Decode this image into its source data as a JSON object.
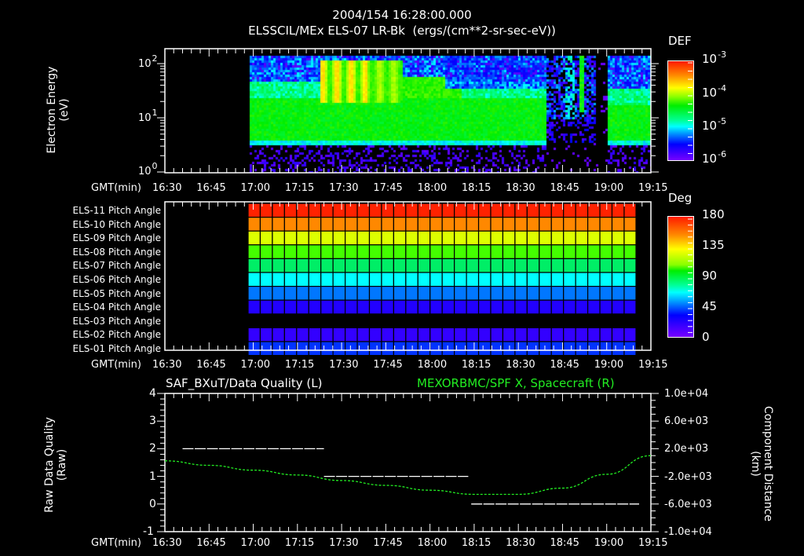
{
  "header": {
    "timestamp": "2004/154 16:28:00.000",
    "title": "ELSSCIL/MEx ELS-07 LR-Bk  (ergs/(cm**2-sr-sec-eV))"
  },
  "time_axis": {
    "label": "GMT(min)",
    "ticks": [
      "16:30",
      "16:45",
      "17:00",
      "17:15",
      "17:30",
      "17:45",
      "18:00",
      "18:15",
      "18:30",
      "18:45",
      "19:00",
      "19:15"
    ]
  },
  "panel1": {
    "ylabel_line1": "Electron Energy",
    "ylabel_line2": "(eV)",
    "yticks": [
      {
        "base": "10",
        "exp": "2"
      },
      {
        "base": "10",
        "exp": "1"
      },
      {
        "base": "10",
        "exp": "0"
      }
    ],
    "colorbar": {
      "label": "DEF",
      "ticks": [
        {
          "base": "10",
          "exp": "-3"
        },
        {
          "base": "10",
          "exp": "-4"
        },
        {
          "base": "10",
          "exp": "-5"
        },
        {
          "base": "10",
          "exp": "-6"
        }
      ]
    }
  },
  "panel2": {
    "rows": [
      "ELS-11 Pitch Angle",
      "ELS-10 Pitch Angle",
      "ELS-09 Pitch Angle",
      "ELS-08 Pitch Angle",
      "ELS-07 Pitch Angle",
      "ELS-06 Pitch Angle",
      "ELS-05 Pitch Angle",
      "ELS-04 Pitch Angle",
      "ELS-03 Pitch Angle",
      "ELS-02 Pitch Angle",
      "ELS-01 Pitch Angle"
    ],
    "row_colors": [
      "#ff2200",
      "#ff8800",
      "#ddff00",
      "#44ff00",
      "#00ee66",
      "#00ffff",
      "#0077ff",
      "#2200ff",
      null,
      "#3300ff",
      "#0033ff"
    ],
    "colorbar": {
      "label": "Deg",
      "ticks": [
        "180",
        "135",
        "90",
        "45",
        "0"
      ]
    }
  },
  "panel3": {
    "left_title": "SAF_BXuT/Data Quality (L)",
    "right_title": "MEXORBMC/SPF X, Spacecraft (R)",
    "left_ylabel_line1": "Raw Data Quality",
    "left_ylabel_line2": "(Raw)",
    "right_ylabel_line1": "Component Distance",
    "right_ylabel_line2": "(km)",
    "left_yticks": [
      "4",
      "3",
      "2",
      "1",
      "0",
      "-1"
    ],
    "right_yticks": [
      "1.0e+04",
      "6.0e+03",
      "2.0e+03",
      "-2.0e+03",
      "-6.0e+03",
      "-1.0e+04"
    ]
  },
  "colors": {
    "background": "#000000",
    "axis": "#ffffff",
    "spacecraft_line": "#22ee22"
  },
  "chart_data": [
    {
      "type": "heatmap",
      "title": "ELSSCIL/MEx ELS-07 LR-Bk (ergs/(cm**2-sr-sec-eV))",
      "xlabel": "GMT(min)",
      "ylabel": "Electron Energy (eV)",
      "yscale": "log",
      "ylim": [
        1,
        190
      ],
      "xlim": [
        "16:30",
        "19:15"
      ],
      "colorbar": {
        "label": "DEF",
        "scale": "log",
        "range": [
          1e-06,
          0.001
        ]
      },
      "data_start": "16:58",
      "data_end": "19:15",
      "segments": [
        {
          "start": "16:58",
          "end": "18:39",
          "band_low_eV": 3.5,
          "band_high_eV": 25,
          "peak_DEF": "~1e-4",
          "note": "dense green plasma band; yellow bursts near 17:23-17:35 at 40-100 eV"
        },
        {
          "start": "18:39",
          "end": "18:56",
          "band_low_eV": 5,
          "band_high_eV": 150,
          "peak_DEF": "~1e-5",
          "note": "sparse blue/violet, narrow green spike near 18:51"
        },
        {
          "start": "18:56",
          "end": "19:00",
          "peak_DEF": "<1e-6",
          "note": "gap / no signal"
        },
        {
          "start": "19:00",
          "end": "19:15",
          "band_low_eV": 3.5,
          "band_high_eV": 18,
          "peak_DEF": "~1e-4",
          "note": "green band resumes"
        }
      ]
    },
    {
      "type": "heatmap",
      "title": "Pitch Angle",
      "xlabel": "GMT(min)",
      "categories": [
        "ELS-11",
        "ELS-10",
        "ELS-09",
        "ELS-08",
        "ELS-07",
        "ELS-06",
        "ELS-05",
        "ELS-04",
        "ELS-03",
        "ELS-02",
        "ELS-01"
      ],
      "values_deg": [
        172,
        150,
        128,
        110,
        98,
        82,
        62,
        40,
        null,
        30,
        50
      ],
      "colorbar": {
        "label": "Deg",
        "range": [
          0,
          180
        ]
      },
      "data_start": "16:58",
      "data_end": "19:10"
    },
    {
      "type": "line",
      "xlabel": "GMT(min)",
      "xlim": [
        "16:30",
        "19:15"
      ],
      "series": [
        {
          "name": "SAF_BXuT/Data Quality (L)",
          "axis": "left",
          "ylim": [
            -1,
            4
          ],
          "segments": [
            {
              "start": "16:36",
              "end": "17:24",
              "value": 2
            },
            {
              "start": "17:24",
              "end": "18:13",
              "value": 1
            },
            {
              "start": "18:14",
              "end": "19:11",
              "value": 0
            }
          ]
        },
        {
          "name": "MEXORBMC/SPF X, Spacecraft (R)",
          "axis": "right",
          "ylim": [
            -10000,
            10000
          ],
          "x": [
            "16:30",
            "16:45",
            "17:00",
            "17:15",
            "17:30",
            "17:45",
            "18:00",
            "18:15",
            "18:30",
            "18:45",
            "19:00",
            "19:15"
          ],
          "values": [
            250,
            -400,
            -1100,
            -1800,
            -2600,
            -3300,
            -4000,
            -4600,
            -4600,
            -3700,
            -1700,
            1000
          ]
        }
      ]
    }
  ]
}
